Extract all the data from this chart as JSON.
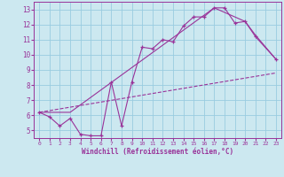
{
  "xlabel": "Windchill (Refroidissement éolien,°C)",
  "bg_color": "#cce8f0",
  "grid_color": "#99cce0",
  "line_color": "#993399",
  "xlim": [
    -0.5,
    23.5
  ],
  "ylim": [
    4.5,
    13.5
  ],
  "xticks": [
    0,
    1,
    2,
    3,
    4,
    5,
    6,
    7,
    8,
    9,
    10,
    11,
    12,
    13,
    14,
    15,
    16,
    17,
    18,
    19,
    20,
    21,
    22,
    23
  ],
  "yticks": [
    5,
    6,
    7,
    8,
    9,
    10,
    11,
    12,
    13
  ],
  "curve1_x": [
    0,
    1,
    2,
    3,
    4,
    5,
    6,
    7,
    8,
    9,
    10,
    11,
    12,
    13,
    14,
    15,
    16,
    17,
    18,
    19,
    20,
    21,
    23
  ],
  "curve1_y": [
    6.2,
    5.9,
    5.3,
    5.8,
    4.75,
    4.65,
    4.65,
    8.2,
    5.3,
    8.2,
    10.5,
    10.4,
    11.0,
    10.85,
    11.9,
    12.5,
    12.5,
    13.1,
    13.1,
    12.1,
    12.2,
    11.2,
    9.7
  ],
  "curve2_x": [
    0,
    23
  ],
  "curve2_y": [
    6.2,
    8.8
  ],
  "curve3_x": [
    0,
    3,
    17,
    20,
    21,
    23
  ],
  "curve3_y": [
    6.2,
    6.2,
    13.1,
    12.2,
    11.3,
    9.7
  ]
}
